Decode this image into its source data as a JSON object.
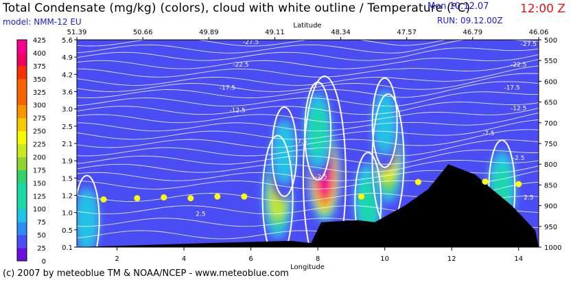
{
  "header": {
    "title": "Total Condensate (mg/kg) (colors), cloud with white outline / Temperature (°C)",
    "model": "model: NMM-12 EU",
    "valid_time": "Mon 10.12.07",
    "valid_hour": "12:00 Z",
    "run": "RUN: 09.12.00Z"
  },
  "footer": {
    "credit": "(c) 2007 by meteoblue TM & NOAA/NCEP - www.meteoblue.com"
  },
  "colors": {
    "background": "#4a4cf4",
    "terrain": "#000000",
    "isotherm": "#ffffff",
    "pbl_marker": "#ffff00",
    "colorbar": [
      "#6a0fe0",
      "#4a4cf4",
      "#2f8ef4",
      "#22c2e6",
      "#1ad8a8",
      "#37d26a",
      "#8fd630",
      "#c8e820",
      "#f8fa00",
      "#f8c800",
      "#f89600",
      "#f86400",
      "#f83000",
      "#f00060",
      "#f8008c"
    ]
  },
  "chart_data": {
    "type": "heatmap",
    "title": "Total Condensate (mg/kg) (colors), cloud with white outline / Temperature (°C)",
    "xlabel": "Longitude",
    "x2label": "Latitude",
    "xlim": [
      0.8,
      14.6
    ],
    "x_ticks": [
      2,
      4,
      6,
      8,
      10,
      12,
      14
    ],
    "x_tick_labels": [
      "2",
      "4",
      "6",
      "8",
      "10",
      "12",
      "14"
    ],
    "top_tick_labels": [
      "51.39",
      "50.66",
      "49.89",
      "49.11",
      "48.34",
      "47.57",
      "46.79",
      "46.06"
    ],
    "left_ticks": [
      "5.6",
      "4.9",
      "4.2",
      "3.6",
      "3.0",
      "2.5",
      "2.1",
      "1.9",
      "1.5",
      "1.2",
      "1.0",
      "0.5",
      "0.1"
    ],
    "right_ticks": [
      "500",
      "550",
      "600",
      "650",
      "700",
      "750",
      "800",
      "850",
      "900",
      "950",
      "1000"
    ],
    "y_right_lim": [
      500,
      1000
    ],
    "colorbar_levels": [
      0,
      25,
      50,
      75,
      100,
      125,
      150,
      175,
      200,
      225,
      250,
      275,
      300,
      325,
      350,
      375,
      400,
      425
    ],
    "condensate_cells": [
      {
        "lon": 1.1,
        "p": 935,
        "value": 100
      },
      {
        "lon": 6.8,
        "p": 880,
        "value": 200
      },
      {
        "lon": 7.0,
        "p": 770,
        "value": 100
      },
      {
        "lon": 8.2,
        "p": 830,
        "value": 425
      },
      {
        "lon": 8.0,
        "p": 720,
        "value": 125
      },
      {
        "lon": 9.5,
        "p": 890,
        "value": 125
      },
      {
        "lon": 10.1,
        "p": 790,
        "value": 225
      },
      {
        "lon": 10.0,
        "p": 700,
        "value": 100
      },
      {
        "lon": 13.5,
        "p": 860,
        "value": 125
      }
    ],
    "terrain_pressure": [
      {
        "lon": 0.8,
        "p": 1000
      },
      {
        "lon": 4.8,
        "p": 990
      },
      {
        "lon": 7.2,
        "p": 985
      },
      {
        "lon": 7.8,
        "p": 990
      },
      {
        "lon": 8.1,
        "p": 940
      },
      {
        "lon": 9.2,
        "p": 935
      },
      {
        "lon": 9.7,
        "p": 940
      },
      {
        "lon": 10.6,
        "p": 900
      },
      {
        "lon": 11.3,
        "p": 860
      },
      {
        "lon": 11.9,
        "p": 800
      },
      {
        "lon": 12.7,
        "p": 825
      },
      {
        "lon": 13.2,
        "p": 860
      },
      {
        "lon": 13.8,
        "p": 900
      },
      {
        "lon": 14.5,
        "p": 960
      },
      {
        "lon": 14.6,
        "p": 1000
      }
    ],
    "isotherm_labels": [
      {
        "value": "-27.5",
        "lon": 6.0,
        "p": 505
      },
      {
        "value": "-22.5",
        "lon": 5.7,
        "p": 560
      },
      {
        "value": "-17.5",
        "lon": 5.3,
        "p": 615
      },
      {
        "value": "-12.5",
        "lon": 5.6,
        "p": 670
      },
      {
        "value": "-7.5",
        "lon": 7.5,
        "p": 745
      },
      {
        "value": "-2.5",
        "lon": 8.1,
        "p": 830
      },
      {
        "value": "2.5",
        "lon": 4.5,
        "p": 920
      },
      {
        "value": "-27.5",
        "lon": 14.3,
        "p": 510
      },
      {
        "value": "-22.5",
        "lon": 14.0,
        "p": 560
      },
      {
        "value": "-17.5",
        "lon": 13.8,
        "p": 615
      },
      {
        "value": "-12.5",
        "lon": 14.0,
        "p": 665
      },
      {
        "value": "-7.5",
        "lon": 13.1,
        "p": 725
      },
      {
        "value": "-2.5",
        "lon": 14.0,
        "p": 785
      },
      {
        "value": "2.5",
        "lon": 14.3,
        "p": 880
      }
    ],
    "pbl_points": [
      {
        "lon": 1.6,
        "p": 885
      },
      {
        "lon": 2.6,
        "p": 882
      },
      {
        "lon": 3.4,
        "p": 880
      },
      {
        "lon": 4.2,
        "p": 882
      },
      {
        "lon": 5.0,
        "p": 878
      },
      {
        "lon": 5.8,
        "p": 878
      },
      {
        "lon": 9.3,
        "p": 878
      },
      {
        "lon": 11.0,
        "p": 843
      },
      {
        "lon": 13.0,
        "p": 842
      },
      {
        "lon": 14.0,
        "p": 848
      }
    ]
  }
}
